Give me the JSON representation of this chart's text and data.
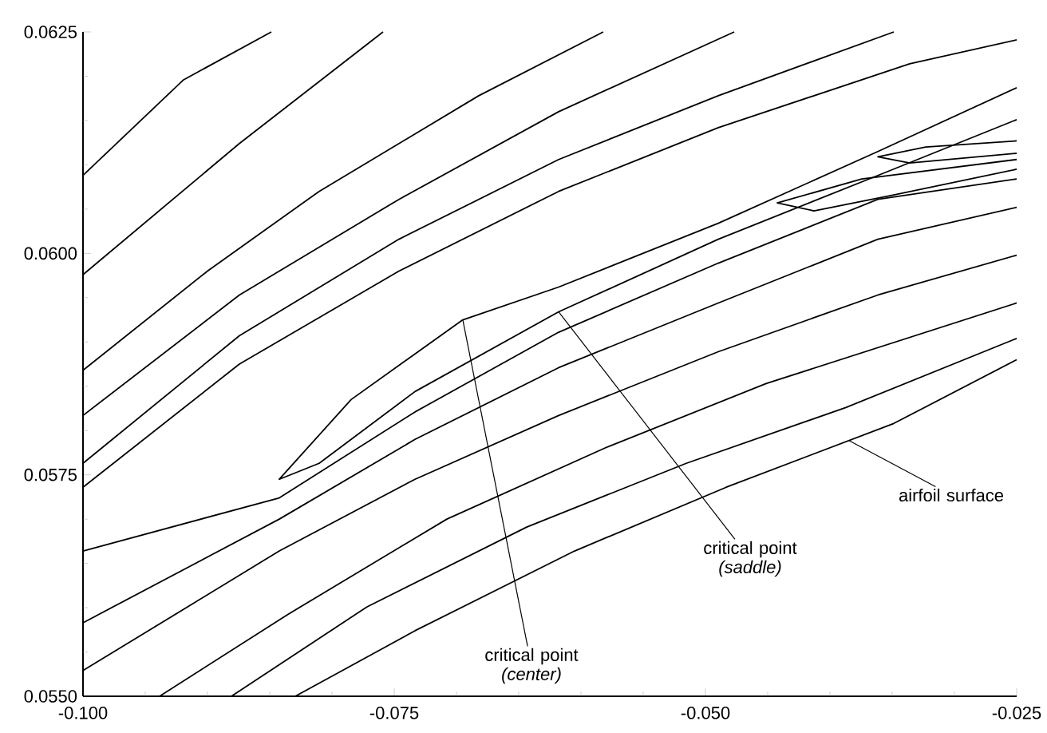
{
  "chart_data": {
    "type": "line",
    "xlim": [
      -0.1,
      -0.025
    ],
    "ylim": [
      0.055,
      0.0625
    ],
    "xticks": [
      {
        "value": -0.1,
        "label": "-0.100"
      },
      {
        "value": -0.095,
        "label": null
      },
      {
        "value": -0.09,
        "label": null
      },
      {
        "value": -0.085,
        "label": null
      },
      {
        "value": -0.08,
        "label": null
      },
      {
        "value": -0.075,
        "label": "-0.075"
      },
      {
        "value": -0.07,
        "label": null
      },
      {
        "value": -0.065,
        "label": null
      },
      {
        "value": -0.06,
        "label": null
      },
      {
        "value": -0.055,
        "label": null
      },
      {
        "value": -0.05,
        "label": "-0.050"
      },
      {
        "value": -0.045,
        "label": null
      },
      {
        "value": -0.04,
        "label": null
      },
      {
        "value": -0.035,
        "label": null
      },
      {
        "value": -0.03,
        "label": null
      },
      {
        "value": -0.025,
        "label": "-0.025"
      }
    ],
    "yticks": [
      {
        "value": 0.055,
        "label": "0.0550"
      },
      {
        "value": 0.0555,
        "label": null
      },
      {
        "value": 0.056,
        "label": null
      },
      {
        "value": 0.0565,
        "label": null
      },
      {
        "value": 0.057,
        "label": null
      },
      {
        "value": 0.0575,
        "label": "0.0575"
      },
      {
        "value": 0.058,
        "label": null
      },
      {
        "value": 0.0585,
        "label": null
      },
      {
        "value": 0.059,
        "label": null
      },
      {
        "value": 0.0595,
        "label": null
      },
      {
        "value": 0.06,
        "label": "0.0600"
      },
      {
        "value": 0.0605,
        "label": null
      },
      {
        "value": 0.061,
        "label": null
      },
      {
        "value": 0.0615,
        "label": null
      },
      {
        "value": 0.062,
        "label": null
      },
      {
        "value": 0.0625,
        "label": "0.0625"
      }
    ],
    "series": [
      {
        "color": "#000000",
        "x": [
          -0.1,
          -0.09192,
          -0.08487
        ],
        "values": [
          0.06088,
          0.06196,
          0.0625
        ]
      },
      {
        "color": "#000000",
        "x": [
          -0.1,
          -0.08744,
          -0.0759
        ],
        "values": [
          0.05976,
          0.06124,
          0.0625
        ]
      },
      {
        "color": "#000000",
        "x": [
          -0.1,
          -0.09,
          -0.08103,
          -0.06821,
          -0.05821
        ],
        "values": [
          0.05868,
          0.0598,
          0.0607,
          0.06178,
          0.0625
        ]
      },
      {
        "color": "#000000",
        "x": [
          -0.1,
          -0.08744,
          -0.07462,
          -0.06179,
          -0.04769
        ],
        "values": [
          0.05817,
          0.05953,
          0.06061,
          0.0616,
          0.0625
        ]
      },
      {
        "color": "#000000",
        "x": [
          -0.1,
          -0.08744,
          -0.07462,
          -0.06179,
          -0.04897,
          -0.03487
        ],
        "values": [
          0.05763,
          0.05907,
          0.06016,
          0.06106,
          0.06178,
          0.0625
        ]
      },
      {
        "color": "#000000",
        "x": [
          -0.1,
          -0.08744,
          -0.07462,
          -0.06179,
          -0.04897,
          -0.03359,
          -0.025
        ],
        "values": [
          0.05736,
          0.05875,
          0.0598,
          0.0607,
          0.06142,
          0.06214,
          0.06241
        ]
      },
      {
        "color": "#000000",
        "x": [
          -0.025,
          -0.03615,
          -0.04897,
          -0.06179,
          -0.06949,
          -0.07846,
          -0.08423,
          -0.08103,
          -0.07333,
          -0.06179,
          -0.04897,
          -0.03615,
          -0.025
        ],
        "values": [
          0.06187,
          0.06115,
          0.06034,
          0.05962,
          0.05925,
          0.05835,
          0.05745,
          0.05763,
          0.05844,
          0.05934,
          0.06016,
          0.06088,
          0.06151
        ]
      },
      {
        "color": "#000000",
        "x": [
          -0.025,
          -0.03744,
          -0.04423,
          -0.04128,
          -0.03487,
          -0.025
        ],
        "values": [
          0.06106,
          0.06084,
          0.06057,
          0.06048,
          0.06066,
          0.06095
        ]
      },
      {
        "color": "#000000",
        "x": [
          -0.025,
          -0.03231,
          -0.03615,
          -0.03359,
          -0.025
        ],
        "values": [
          0.06127,
          0.0612,
          0.06109,
          0.06102,
          0.06113
        ]
      },
      {
        "color": "#000000",
        "x": [
          -0.1,
          -0.08423,
          -0.07333,
          -0.06179,
          -0.04897,
          -0.03615,
          -0.025
        ],
        "values": [
          0.05664,
          0.05724,
          0.05821,
          0.05911,
          0.05989,
          0.06061,
          0.06084
        ]
      },
      {
        "color": "#000000",
        "x": [
          -0.1,
          -0.08423,
          -0.07333,
          -0.06179,
          -0.04897,
          -0.03615,
          -0.025
        ],
        "values": [
          0.05583,
          0.057,
          0.0579,
          0.05871,
          0.05944,
          0.06016,
          0.06052
        ]
      },
      {
        "color": "#000000",
        "x": [
          -0.1,
          -0.08423,
          -0.07333,
          -0.06179,
          -0.04897,
          -0.03615,
          -0.025
        ],
        "values": [
          0.05529,
          0.05664,
          0.05745,
          0.05817,
          0.05889,
          0.05953,
          0.05998
        ]
      },
      {
        "color": "#000000",
        "x": [
          -0.09385,
          -0.08359,
          -0.07077,
          -0.05795,
          -0.04513,
          -0.025
        ],
        "values": [
          0.055,
          0.05592,
          0.057,
          0.05781,
          0.05853,
          0.05944
        ]
      },
      {
        "color": "#000000",
        "x": [
          -0.08808,
          -0.07718,
          -0.06436,
          -0.05154,
          -0.03872,
          -0.025
        ],
        "values": [
          0.055,
          0.05601,
          0.05691,
          0.05763,
          0.05826,
          0.05904
        ]
      },
      {
        "color": "#000000",
        "x": [
          -0.08295,
          -0.07333,
          -0.06051,
          -0.04833,
          -0.03487,
          -0.025
        ],
        "values": [
          0.055,
          0.05574,
          0.05664,
          0.05736,
          0.05808,
          0.0588
        ]
      }
    ],
    "annotations": [
      {
        "text": "critical point *(center)*",
        "x": -0.06949,
        "y": 0.05925
      },
      {
        "text": "critical point *(saddle)*",
        "x": -0.06179,
        "y": 0.05934
      },
      {
        "text": "airfoil surface",
        "x": -0.0385,
        "y": 0.05789
      }
    ]
  }
}
